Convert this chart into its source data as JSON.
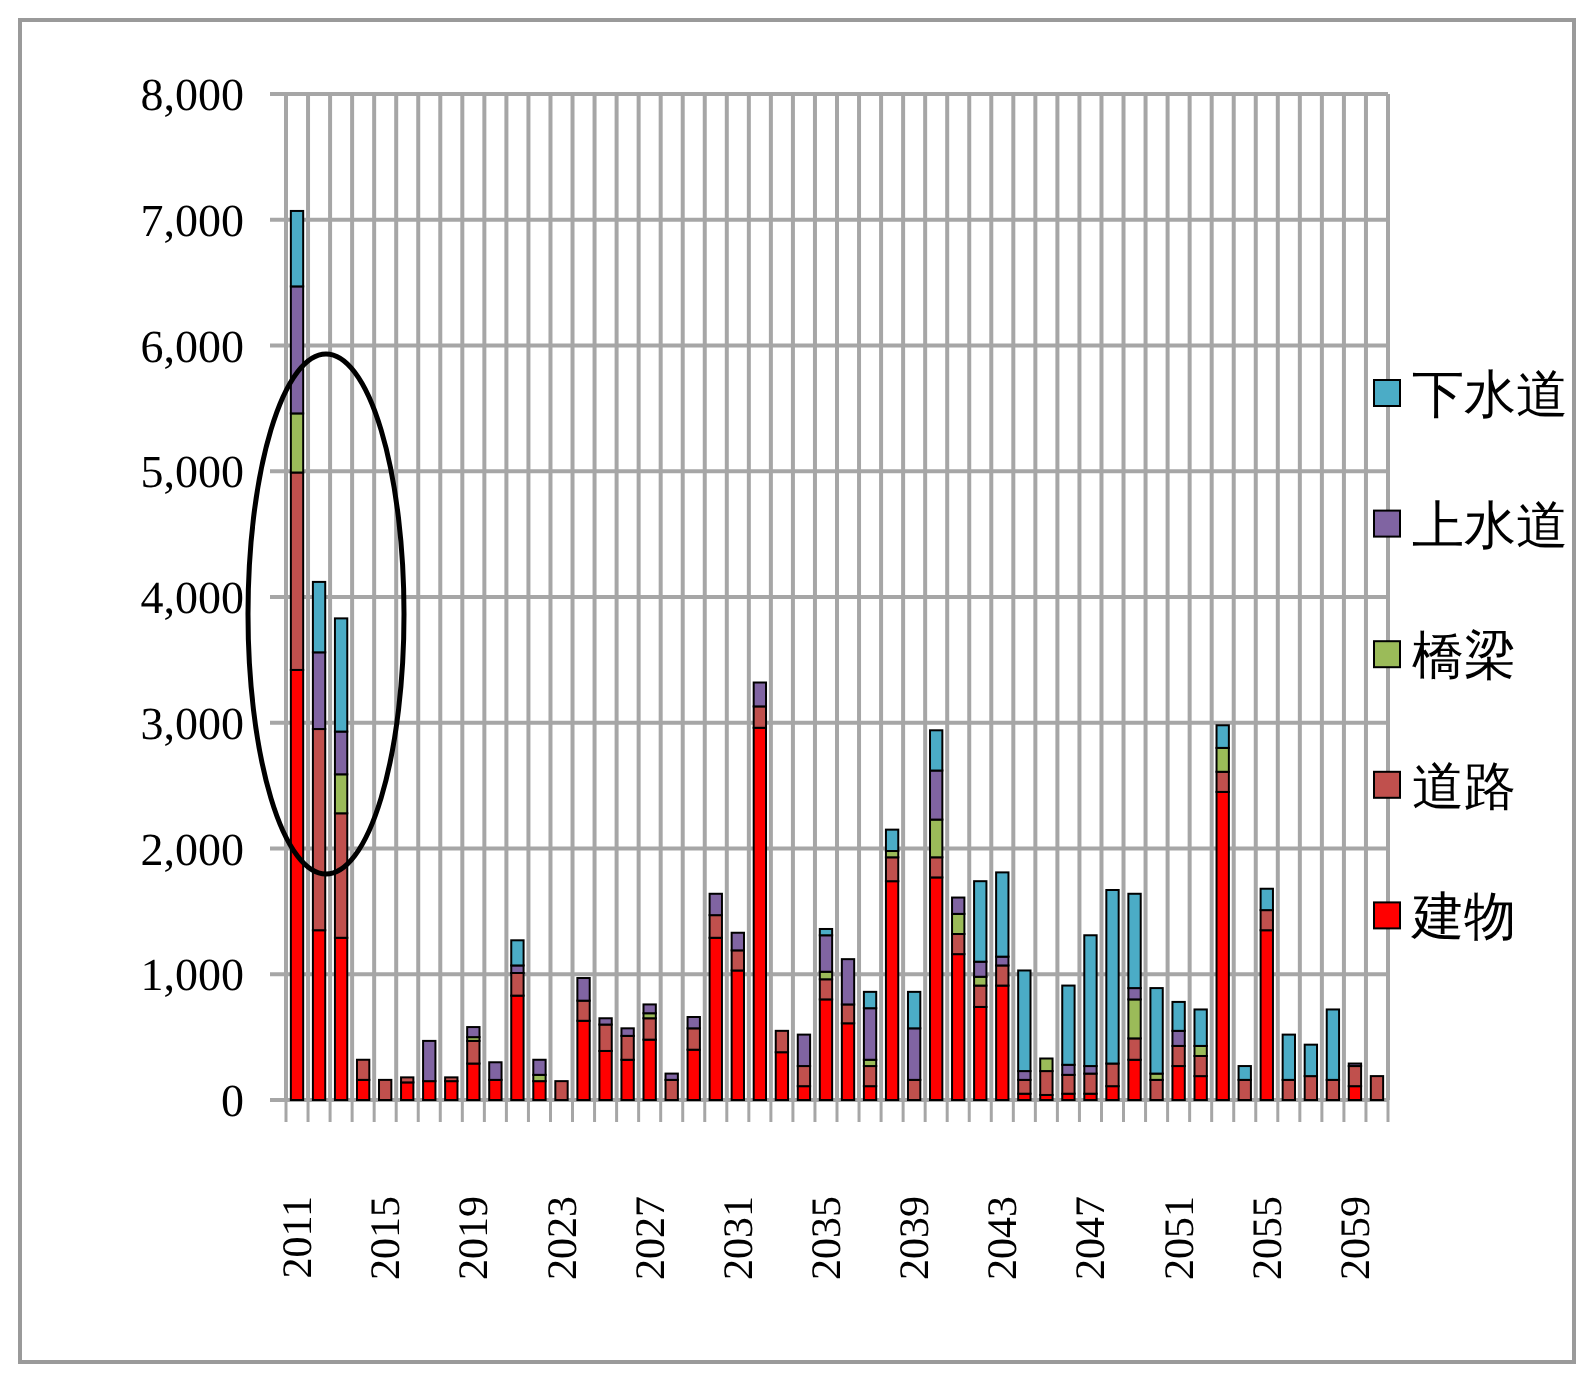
{
  "chart_data": {
    "type": "bar",
    "stacked": true,
    "categories": [
      "2011",
      null,
      null,
      null,
      "2015",
      null,
      null,
      null,
      "2019",
      null,
      null,
      null,
      "2023",
      null,
      null,
      null,
      "2027",
      null,
      null,
      null,
      "2031",
      null,
      null,
      null,
      "2035",
      null,
      null,
      null,
      "2039",
      null,
      null,
      null,
      "2043",
      null,
      null,
      null,
      "2047",
      null,
      null,
      null,
      "2051",
      null,
      null,
      null,
      "2055",
      null,
      null,
      null,
      "2059",
      null
    ],
    "series": [
      {
        "name": "建物",
        "color": "#ff0000",
        "values": [
          3420,
          1350,
          1290,
          160,
          0,
          140,
          150,
          150,
          290,
          160,
          830,
          150,
          0,
          630,
          390,
          320,
          480,
          0,
          400,
          1290,
          1030,
          2960,
          380,
          110,
          800,
          610,
          110,
          1740,
          0,
          1770,
          1160,
          740,
          910,
          50,
          40,
          50,
          50,
          110,
          320,
          0,
          270,
          190,
          2450,
          0,
          1350,
          0,
          0,
          0,
          110,
          0
        ]
      },
      {
        "name": "道路",
        "color": "#c0504d",
        "values": [
          1570,
          1600,
          990,
          160,
          160,
          40,
          0,
          30,
          180,
          0,
          180,
          0,
          150,
          160,
          210,
          190,
          170,
          160,
          170,
          180,
          160,
          170,
          170,
          160,
          160,
          150,
          160,
          190,
          160,
          160,
          160,
          170,
          160,
          110,
          190,
          150,
          160,
          180,
          170,
          160,
          160,
          160,
          160,
          160,
          160,
          160,
          190,
          160,
          160,
          190
        ]
      },
      {
        "name": "橋梁",
        "color": "#9bbb59",
        "values": [
          470,
          0,
          310,
          0,
          0,
          0,
          0,
          0,
          30,
          0,
          0,
          50,
          0,
          0,
          0,
          0,
          40,
          0,
          0,
          0,
          0,
          0,
          0,
          0,
          60,
          0,
          50,
          50,
          0,
          300,
          160,
          70,
          0,
          0,
          100,
          0,
          0,
          0,
          310,
          50,
          0,
          80,
          190,
          0,
          0,
          0,
          0,
          0,
          0,
          0
        ]
      },
      {
        "name": "上水道",
        "color": "#8064a2",
        "values": [
          1010,
          610,
          340,
          0,
          0,
          0,
          320,
          0,
          80,
          140,
          60,
          120,
          0,
          180,
          50,
          60,
          70,
          50,
          90,
          170,
          140,
          190,
          0,
          250,
          290,
          360,
          410,
          0,
          410,
          390,
          130,
          120,
          70,
          70,
          0,
          80,
          60,
          0,
          90,
          0,
          120,
          0,
          0,
          0,
          0,
          0,
          0,
          0,
          20,
          0
        ]
      },
      {
        "name": "下水道",
        "color": "#4bacc6",
        "values": [
          600,
          560,
          900,
          0,
          0,
          0,
          0,
          0,
          0,
          0,
          200,
          0,
          0,
          0,
          0,
          0,
          0,
          0,
          0,
          0,
          0,
          0,
          0,
          0,
          50,
          0,
          130,
          170,
          290,
          320,
          0,
          640,
          670,
          800,
          0,
          630,
          1040,
          1380,
          750,
          680,
          230,
          290,
          180,
          110,
          170,
          360,
          250,
          560,
          0,
          0
        ]
      }
    ],
    "ylim": [
      0,
      8000
    ],
    "yticks": [
      0,
      {
        "value": 1000,
        "label": "1,000"
      },
      {
        "value": 2000,
        "label": "2,000"
      },
      {
        "value": 3000,
        "label": "3,000"
      },
      {
        "value": 4000,
        "label": "4,000"
      },
      {
        "value": 5000,
        "label": "5,000"
      },
      {
        "value": 6000,
        "label": "6,000"
      },
      {
        "value": 7000,
        "label": "7,000"
      },
      {
        "value": 8000,
        "label": "8,000"
      }
    ],
    "grid": true,
    "legend": "right"
  }
}
